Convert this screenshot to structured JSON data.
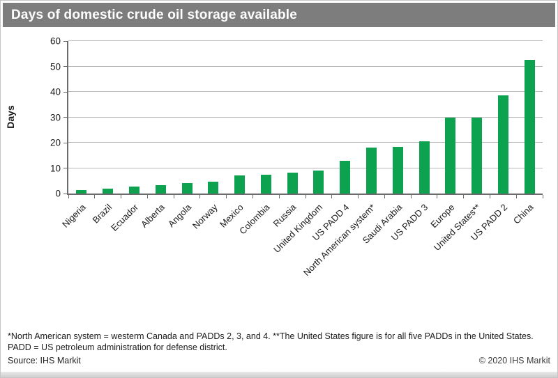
{
  "title": "Days of domestic crude oil storage available",
  "footnote": "*North American system = westerm Canada and PADDs 2, 3, and 4. **The United States figure is for all five PADDs in the United States. PADD = US petroleum administration for defense district.",
  "source": "Source: IHS Markit",
  "copyright": "© 2020 IHS Markit",
  "colors": {
    "title_bar": "#7d7d7d",
    "bar": "#0ca24f",
    "gridline": "#b8b8b8",
    "axis": "#6b6b6b"
  },
  "chart_data": {
    "type": "bar",
    "title": "Days of domestic crude oil storage available",
    "xlabel": "",
    "ylabel": "Days",
    "ylim": [
      0,
      60
    ],
    "yticks": [
      0,
      10,
      20,
      30,
      40,
      50,
      60
    ],
    "grid": true,
    "legend": false,
    "bar_color": "#0ca24f",
    "categories": [
      "Nigeria",
      "Brazil",
      "Ecuador",
      "Alberta",
      "Angola",
      "Norway",
      "Mexico",
      "Colombia",
      "Russia",
      "United Kingdom",
      "US PADD 4",
      "North American system*",
      "Saudi Arabia",
      "US PADD 3",
      "Europe",
      "United States**",
      "US PADD 2",
      "China"
    ],
    "values": [
      1.5,
      2,
      2.7,
      3.3,
      4,
      4.7,
      7,
      7.5,
      8.2,
      9,
      13,
      18,
      18.4,
      20.5,
      30,
      30,
      38.5,
      52.5
    ]
  }
}
